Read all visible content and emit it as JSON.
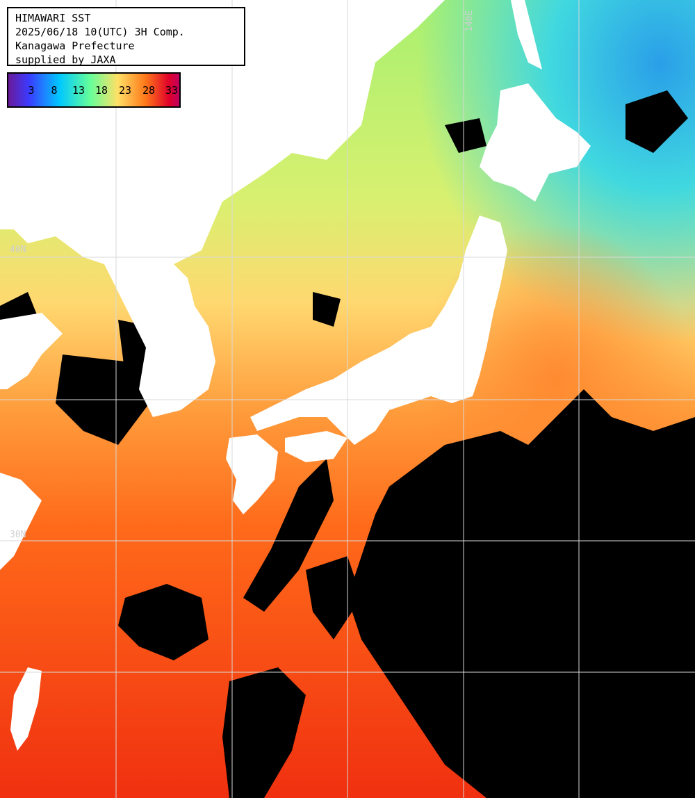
{
  "title_box": {
    "line1": "HIMAWARI SST",
    "line2": "2025/06/18 10(UTC) 3H Comp.",
    "line3": "Kanagawa Prefecture",
    "line4": "supplied by JAXA"
  },
  "legend": {
    "labels": [
      "3",
      "8",
      "13",
      "18",
      "23",
      "28",
      "33"
    ],
    "colors": [
      "#6a1b9a",
      "#3b3bff",
      "#00c8ff",
      "#66ff99",
      "#ffe066",
      "#ff7a1a",
      "#e0002a",
      "#c00060"
    ]
  },
  "grid": {
    "lon_label": "140E",
    "lat_label_upper": "40N",
    "lat_label_lower": "30N"
  },
  "colors": {
    "land": "#ffffff",
    "cloud_mask": "#000000",
    "grid_line": "#d0d0d0"
  }
}
